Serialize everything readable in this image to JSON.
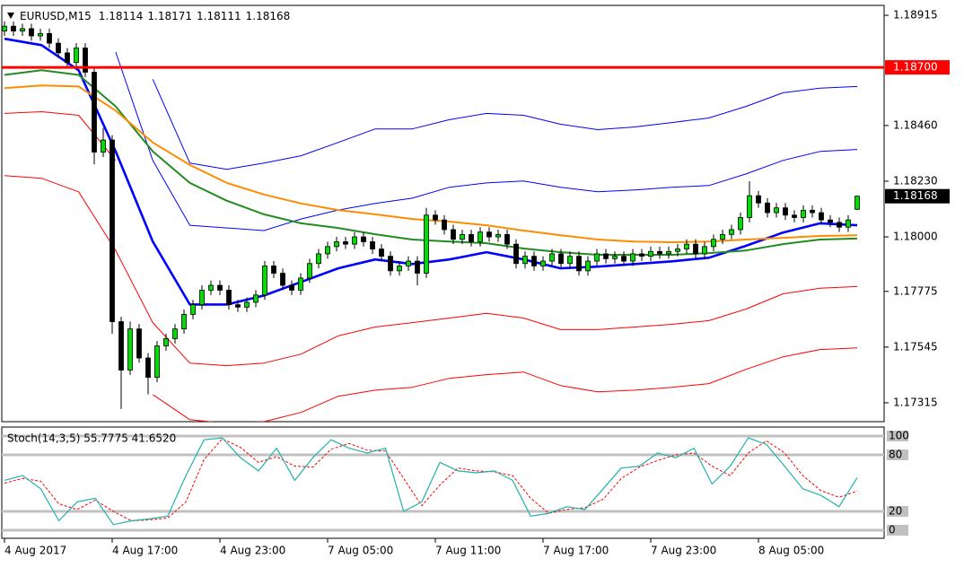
{
  "chart_data": {
    "type": "candlestick",
    "symbol": "EURUSD,M15",
    "header_ohlc": [
      "1.18114",
      "1.18171",
      "1.18111",
      "1.18168"
    ],
    "ylim": [
      1.17237,
      1.18956
    ],
    "yticks": [
      1.18915,
      {
        "value": 1.1846,
        "label": "1.18460"
      },
      {
        "value": 1.1823,
        "label": "1.18230"
      },
      {
        "value": 1.18,
        "label": "1.18000"
      },
      1.17775,
      1.17545,
      1.17315
    ],
    "xtick_labels": [
      "4 Aug 2017",
      "4 Aug 17:00",
      "4 Aug 23:00",
      "7 Aug 05:00",
      "7 Aug 11:00",
      "7 Aug 17:00",
      "7 Aug 23:00",
      "8 Aug 05:00"
    ],
    "up_color": "#00e000",
    "down_color": "#000000",
    "open": [
      1.1885,
      1.1887,
      1.1885,
      1.1886,
      1.1883,
      1.1884,
      1.188,
      1.1876,
      1.1872,
      1.1878,
      1.1868,
      1.1835,
      1.184,
      1.1765,
      1.1745,
      1.1762,
      1.175,
      1.1742,
      1.1755,
      1.1758,
      1.1762,
      1.1768,
      1.1772,
      1.1778,
      1.178,
      1.1778,
      1.1772,
      1.1771,
      1.1773,
      1.1776,
      1.1788,
      1.1785,
      1.178,
      1.1778,
      1.1783,
      1.1789,
      1.1793,
      1.1796,
      1.1798,
      1.1797,
      1.18,
      1.1798,
      1.1795,
      1.1792,
      1.1786,
      1.1788,
      1.179,
      1.1785,
      1.1809,
      1.1807,
      1.1803,
      1.1799,
      1.1801,
      1.1798,
      1.1802,
      1.18,
      1.1801,
      1.1797,
      1.1789,
      1.1792,
      1.1788,
      1.179,
      1.1793,
      1.1789,
      1.1792,
      1.1786,
      1.179,
      1.1793,
      1.1791,
      1.1792,
      1.179,
      1.1793,
      1.1792,
      1.1794,
      1.1793,
      1.1794,
      1.1795,
      1.1797,
      1.1793,
      1.1796,
      1.1799,
      1.1801,
      1.1803,
      1.1808,
      1.1817,
      1.1814,
      1.181,
      1.1812,
      1.1809,
      1.1808,
      1.1811,
      1.181,
      1.1807,
      1.1806,
      1.1804,
      1.18114
    ],
    "high": [
      1.1889,
      1.1889,
      1.1888,
      1.1888,
      1.1886,
      1.1886,
      1.1882,
      1.1878,
      1.188,
      1.188,
      1.187,
      1.1845,
      1.1842,
      1.1767,
      1.1765,
      1.1764,
      1.1752,
      1.1757,
      1.176,
      1.1764,
      1.177,
      1.1774,
      1.178,
      1.1782,
      1.1782,
      1.178,
      1.1774,
      1.1775,
      1.1778,
      1.179,
      1.179,
      1.1787,
      1.1782,
      1.1785,
      1.1791,
      1.1795,
      1.1798,
      1.18,
      1.18,
      1.1802,
      1.1802,
      1.18,
      1.1797,
      1.1794,
      1.179,
      1.1792,
      1.1792,
      1.1812,
      1.1811,
      1.1809,
      1.1805,
      1.1803,
      1.1803,
      1.1804,
      1.1804,
      1.1803,
      1.1803,
      1.1799,
      1.1794,
      1.1794,
      1.1792,
      1.1795,
      1.1795,
      1.1794,
      1.1794,
      1.1792,
      1.1795,
      1.1795,
      1.1794,
      1.1794,
      1.1795,
      1.1795,
      1.1796,
      1.1796,
      1.1796,
      1.1797,
      1.1799,
      1.1799,
      1.1798,
      1.1801,
      1.1803,
      1.1805,
      1.181,
      1.1823,
      1.1819,
      1.1816,
      1.1814,
      1.1814,
      1.1811,
      1.1813,
      1.1813,
      1.1812,
      1.1809,
      1.1808,
      1.1809,
      1.18171
    ],
    "low": [
      1.1883,
      1.1883,
      1.1883,
      1.1881,
      1.1881,
      1.1878,
      1.1874,
      1.187,
      1.187,
      1.1866,
      1.183,
      1.1833,
      1.176,
      1.1729,
      1.1743,
      1.1748,
      1.1735,
      1.174,
      1.1753,
      1.1756,
      1.176,
      1.1766,
      1.177,
      1.1776,
      1.1776,
      1.177,
      1.1769,
      1.1769,
      1.1771,
      1.1774,
      1.1783,
      1.1778,
      1.1776,
      1.1776,
      1.1781,
      1.1787,
      1.1791,
      1.1794,
      1.1795,
      1.1795,
      1.1796,
      1.1793,
      1.179,
      1.1784,
      1.1784,
      1.1786,
      1.178,
      1.1783,
      1.1805,
      1.1801,
      1.1797,
      1.1797,
      1.1796,
      1.1796,
      1.1798,
      1.1798,
      1.1795,
      1.1787,
      1.1787,
      1.1786,
      1.1786,
      1.1788,
      1.1787,
      1.1787,
      1.1784,
      1.1784,
      1.1788,
      1.1789,
      1.1789,
      1.1788,
      1.1788,
      1.179,
      1.179,
      1.1791,
      1.1791,
      1.1792,
      1.1793,
      1.1791,
      1.1791,
      1.1794,
      1.1797,
      1.1799,
      1.1801,
      1.1806,
      1.1812,
      1.1808,
      1.1808,
      1.1807,
      1.1806,
      1.1806,
      1.1808,
      1.1805,
      1.1804,
      1.1802,
      1.1802,
      1.18111
    ],
    "close": [
      1.1887,
      1.1885,
      1.1886,
      1.1883,
      1.1884,
      1.188,
      1.1876,
      1.1872,
      1.1878,
      1.1868,
      1.1835,
      1.184,
      1.1765,
      1.1745,
      1.1762,
      1.175,
      1.1742,
      1.1755,
      1.1758,
      1.1762,
      1.1768,
      1.1772,
      1.1778,
      1.178,
      1.1778,
      1.1772,
      1.1771,
      1.1773,
      1.1776,
      1.1788,
      1.1785,
      1.178,
      1.1778,
      1.1783,
      1.1789,
      1.1793,
      1.1796,
      1.1798,
      1.1797,
      1.18,
      1.1798,
      1.1795,
      1.1792,
      1.1786,
      1.1788,
      1.179,
      1.1785,
      1.1809,
      1.1807,
      1.1803,
      1.1799,
      1.1801,
      1.1798,
      1.1802,
      1.18,
      1.1801,
      1.1797,
      1.1789,
      1.1792,
      1.1788,
      1.179,
      1.1793,
      1.1789,
      1.1792,
      1.1786,
      1.179,
      1.1793,
      1.1791,
      1.1792,
      1.179,
      1.1793,
      1.1792,
      1.1794,
      1.1793,
      1.1794,
      1.1795,
      1.1797,
      1.1793,
      1.1796,
      1.1799,
      1.1801,
      1.1803,
      1.1808,
      1.1817,
      1.1814,
      1.181,
      1.1812,
      1.1809,
      1.1808,
      1.1811,
      1.181,
      1.1807,
      1.1806,
      1.1804,
      1.1807,
      1.18168
    ],
    "ma_lines": [
      {
        "color": "#0000ff",
        "values": [
          1.18818,
          1.18792,
          1.18688,
          1.18353,
          1.17981,
          1.17721,
          1.17721,
          1.17758,
          1.17814,
          1.1787,
          1.17907,
          1.17888,
          1.17907,
          1.17937,
          1.17907,
          1.1787,
          1.17877,
          1.17888,
          1.17899,
          1.17914,
          1.17963,
          1.18018,
          1.18056,
          1.18048
        ]
      },
      {
        "color": "#228b22",
        "values": [
          1.18669,
          1.18688,
          1.18669,
          1.18539,
          1.18353,
          1.18223,
          1.18149,
          1.18093,
          1.18056,
          1.18037,
          1.18011,
          1.17989,
          1.17981,
          1.17974,
          1.17952,
          1.17937,
          1.17926,
          1.17926,
          1.17926,
          1.17933,
          1.17944,
          1.1797,
          1.17989,
          1.17993
        ]
      },
      {
        "color": "#ff8c00",
        "values": [
          1.18614,
          1.18625,
          1.18621,
          1.18521,
          1.1839,
          1.18297,
          1.18223,
          1.18175,
          1.18138,
          1.18111,
          1.18093,
          1.18074,
          1.18063,
          1.18048,
          1.18026,
          1.18007,
          1.17989,
          1.17981,
          1.17978,
          1.17981,
          1.17989,
          1.17996,
          1.18004,
          1.18007
        ]
      }
    ],
    "band_lines": [
      {
        "color": "#0000ff",
        "values": [
          null,
          null,
          null,
          null,
          1.18651,
          1.18305,
          1.18279,
          1.18305,
          1.18335,
          1.1839,
          1.18446,
          1.18446,
          1.18484,
          1.1851,
          1.18502,
          1.18465,
          1.18443,
          1.18454,
          1.18472,
          1.18491,
          1.18539,
          1.18595,
          1.18614,
          1.18621
        ]
      },
      {
        "color": "#0000ff",
        "values": [
          null,
          null,
          null,
          1.18763,
          1.18316,
          1.18048,
          1.18037,
          1.18026,
          1.18074,
          1.18111,
          1.18138,
          1.1816,
          1.18205,
          1.18223,
          1.18231,
          1.18205,
          1.18186,
          1.18194,
          1.18205,
          1.18212,
          1.1826,
          1.18316,
          1.18353,
          1.18361
        ]
      },
      {
        "color": "#ff0000",
        "values": [
          1.1851,
          1.18517,
          1.18502,
          1.18316,
          null,
          null,
          null,
          null,
          null,
          null,
          null,
          null,
          null,
          null,
          null,
          null,
          null,
          null,
          null,
          null,
          null,
          null,
          null,
          null
        ]
      },
      {
        "color": "#ff0000",
        "values": [
          1.18253,
          1.18242,
          1.18186,
          1.17944,
          1.17646,
          1.17479,
          1.17468,
          1.17479,
          1.17516,
          1.17591,
          1.17628,
          1.17646,
          1.17665,
          1.17684,
          1.17665,
          1.17617,
          1.17617,
          1.17628,
          1.17639,
          1.17654,
          1.17702,
          1.17765,
          1.17788,
          1.17795
        ]
      },
      {
        "color": "#ff0000",
        "values": [
          null,
          null,
          null,
          null,
          1.17349,
          1.17245,
          1.1723,
          1.17237,
          1.17275,
          1.17342,
          1.17367,
          1.17379,
          1.17416,
          1.17431,
          1.17442,
          1.17386,
          1.1736,
          1.17367,
          1.17379,
          1.17394,
          1.17453,
          1.17505,
          1.17535,
          1.17542
        ]
      }
    ],
    "hline": {
      "value": 1.187,
      "label": "1.18700",
      "color": "#ff0000"
    },
    "last_price": {
      "value": 1.18168,
      "label": "1.18168"
    },
    "stoch": {
      "label": "Stoch(14,3,5) 55.7775 41.6520",
      "ylim": [
        0,
        100
      ],
      "yticks": [
        100,
        80,
        20,
        0
      ],
      "main": {
        "color": "#20b2aa",
        "values": [
          53,
          58,
          44,
          10,
          30,
          34,
          6,
          10,
          12,
          15,
          58,
          96,
          98,
          77,
          63,
          87,
          53,
          77,
          96,
          87,
          82,
          87,
          20,
          30,
          72,
          63,
          61,
          63,
          53,
          15,
          18,
          25,
          22,
          44,
          66,
          68,
          82,
          77,
          87,
          49,
          68,
          98,
          91,
          68,
          44,
          37,
          25,
          55.7775
        ]
      },
      "signal": {
        "color": "#ff0000",
        "values": [
          50,
          55,
          52,
          28,
          22,
          32,
          20,
          10,
          11,
          13,
          30,
          75,
          97,
          88,
          72,
          78,
          68,
          67,
          86,
          92,
          85,
          84,
          55,
          26,
          48,
          66,
          63,
          62,
          58,
          34,
          18,
          22,
          24,
          33,
          55,
          67,
          74,
          80,
          82,
          68,
          58,
          82,
          95,
          82,
          58,
          42,
          35,
          41.652
        ]
      }
    }
  }
}
